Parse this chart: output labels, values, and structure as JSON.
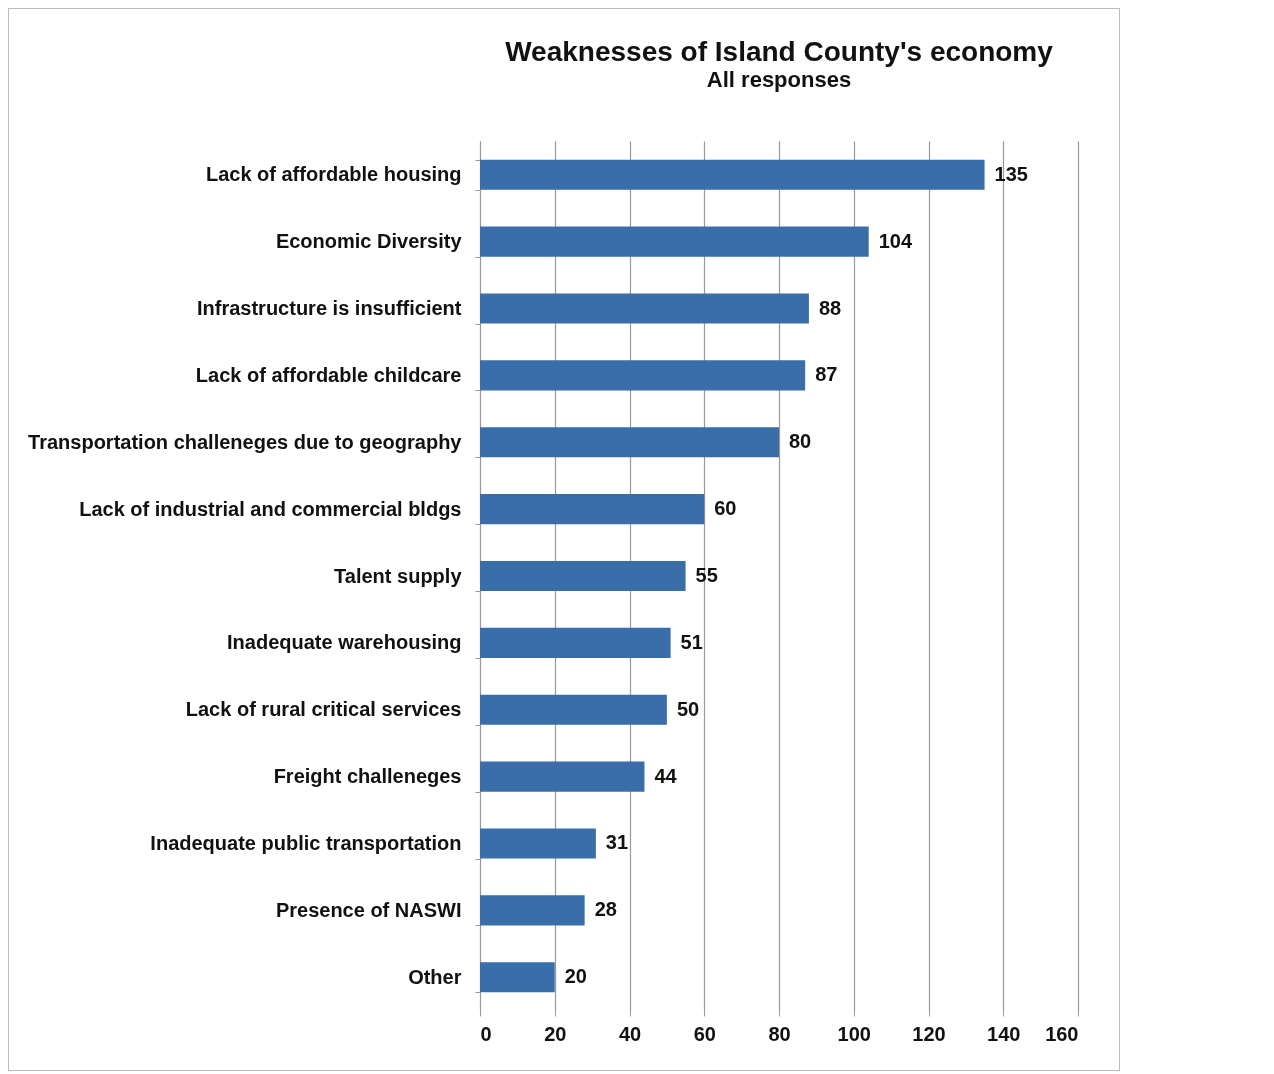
{
  "chart_data": {
    "type": "bar",
    "orientation": "horizontal",
    "title": "Weaknesses of Island County's economy",
    "subtitle": "All responses",
    "categories": [
      "Lack of affordable housing",
      "Economic Diversity",
      "Infrastructure is insufficient",
      "Lack of affordable childcare",
      "Transportation challeneges due to geography",
      "Lack of industrial and commercial bldgs",
      "Talent supply",
      "Inadequate warehousing",
      "Lack of rural critical services",
      "Freight challeneges",
      "Inadequate public transportation",
      "Presence of NASWI",
      "Other"
    ],
    "values": [
      135,
      104,
      88,
      87,
      80,
      60,
      55,
      51,
      50,
      44,
      31,
      28,
      20
    ],
    "color": "#3a6ea8",
    "xlim": [
      0,
      160
    ],
    "xticks": [
      0,
      20,
      40,
      60,
      80,
      100,
      120,
      140,
      160
    ],
    "grid": "x",
    "data_labels": true
  }
}
